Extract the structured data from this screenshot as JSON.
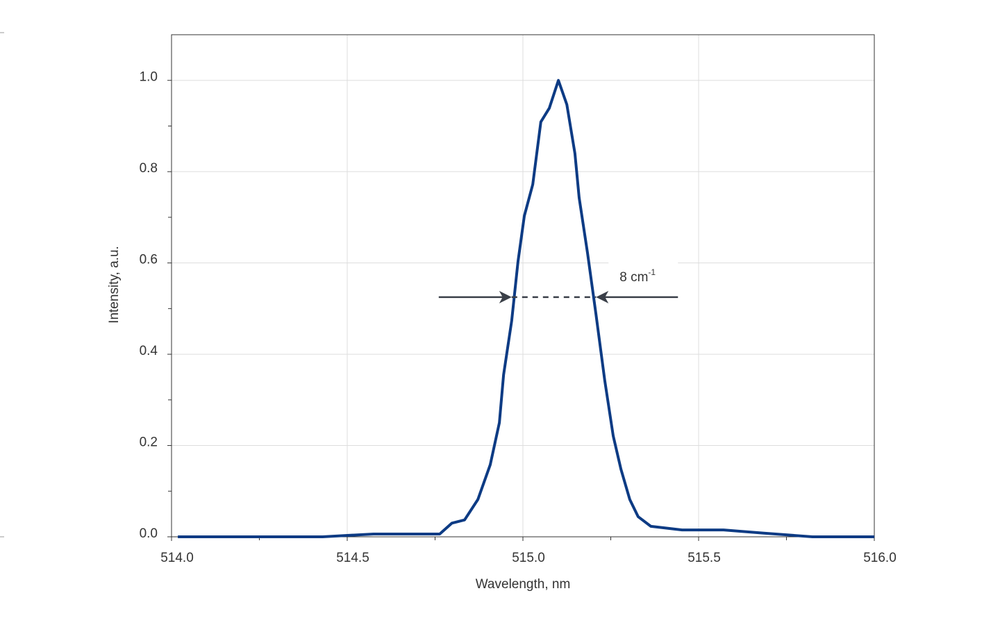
{
  "chart_data": {
    "type": "line",
    "xlabel": "Wavelength, nm",
    "ylabel": "Intensity, a.u.",
    "x": [
      514.018,
      514.43,
      514.5,
      514.575,
      514.763,
      514.798,
      514.834,
      514.872,
      514.907,
      514.933,
      514.945,
      514.968,
      514.986,
      515.004,
      515.028,
      515.051,
      515.075,
      515.101,
      515.125,
      515.148,
      515.16,
      515.184,
      515.208,
      515.233,
      515.257,
      515.279,
      515.304,
      515.328,
      515.364,
      515.453,
      515.571,
      515.686,
      515.824,
      516.0
    ],
    "values": [
      0,
      0,
      0.003,
      0.006,
      0.006,
      0.03,
      0.037,
      0.082,
      0.158,
      0.25,
      0.355,
      0.473,
      0.603,
      0.703,
      0.772,
      0.909,
      0.939,
      1.0,
      0.947,
      0.84,
      0.743,
      0.621,
      0.487,
      0.342,
      0.221,
      0.148,
      0.082,
      0.044,
      0.023,
      0.015,
      0.015,
      0.008,
      0,
      0
    ],
    "color": "#0d3b84",
    "xlim": [
      514.0,
      516.0
    ],
    "xticks": [
      {
        "value": 514,
        "label": "514.0"
      },
      514.5,
      {
        "value": 515,
        "label": "515.0"
      },
      515.5,
      {
        "value": 516,
        "label": "516.0"
      }
    ],
    "xminorticks": [
      514.25,
      514.75,
      515.25,
      515.75
    ],
    "ylim": [
      0,
      1.1
    ],
    "yticks": [
      {
        "value": 0,
        "label": "0.0"
      },
      0.2,
      0.4,
      0.6,
      0.8,
      {
        "value": 1,
        "label": "1.0"
      }
    ],
    "yminorticks": [
      0.1,
      0.3,
      0.5,
      0.7,
      0.9
    ],
    "grid": true,
    "annotation": {
      "text": "8 cm",
      "superscript": "-1",
      "y": 0.525,
      "left": 514.968,
      "right": 515.208
    }
  }
}
